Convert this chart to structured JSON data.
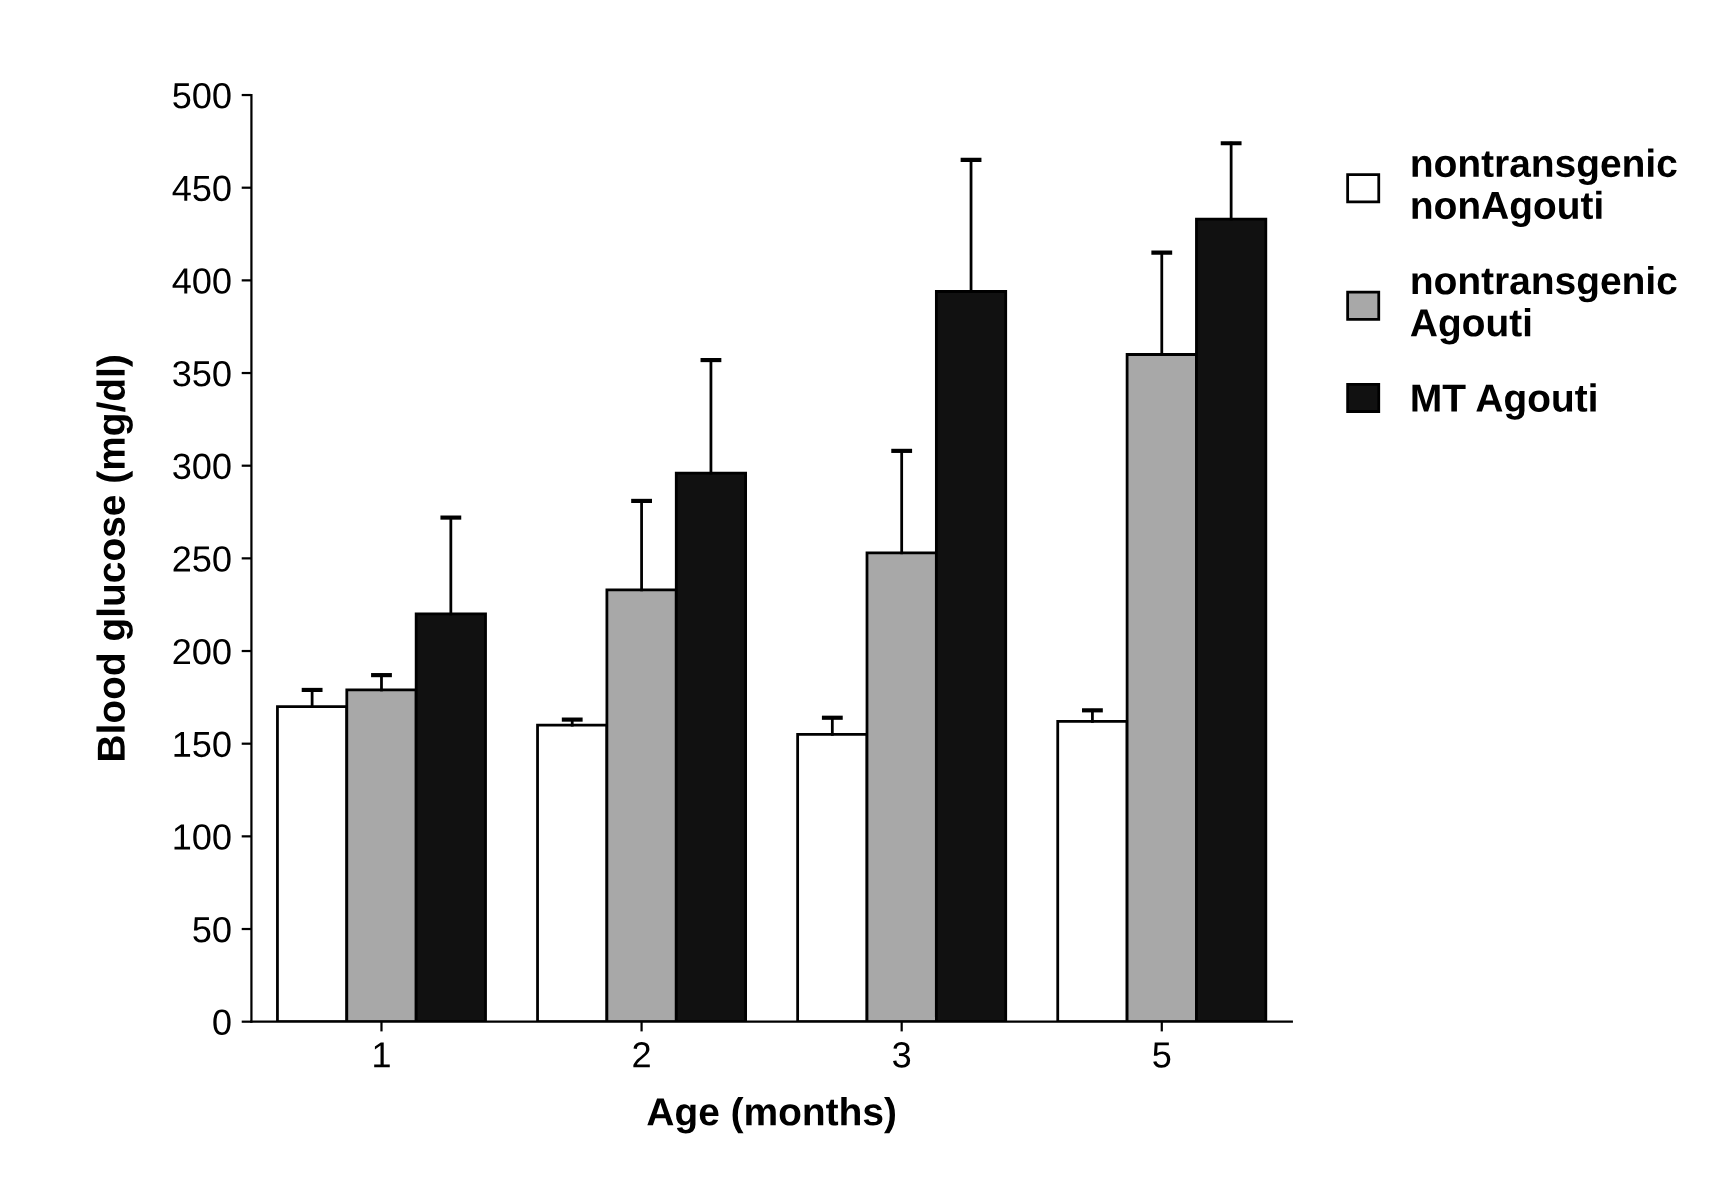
{
  "chart_data": {
    "type": "bar",
    "xlabel": "Age (months)",
    "ylabel": "Blood glucose (mg/dl)",
    "categories": [
      "1",
      "2",
      "3",
      "5"
    ],
    "series": [
      {
        "name": "nontransgenic\nnonAgouti",
        "color": "#ffffff",
        "values": [
          170,
          160,
          155,
          162
        ],
        "errors": [
          [
            170,
            179
          ],
          [
            160,
            163
          ],
          [
            155,
            164
          ],
          [
            162,
            168
          ]
        ]
      },
      {
        "name": "nontransgenic\nAgouti",
        "color": "#a8a8a8",
        "values": [
          179,
          233,
          253,
          360
        ],
        "errors": [
          [
            179,
            187
          ],
          [
            233,
            281
          ],
          [
            253,
            308
          ],
          [
            360,
            415
          ]
        ]
      },
      {
        "name": "MT Agouti",
        "color": "#111111",
        "values": [
          220,
          296,
          394,
          433
        ],
        "errors": [
          [
            220,
            272
          ],
          [
            296,
            357
          ],
          [
            394,
            465
          ],
          [
            433,
            474
          ]
        ]
      }
    ],
    "ylim": [
      0,
      500
    ],
    "yticks": [
      0,
      50,
      100,
      150,
      200,
      250,
      300,
      350,
      400,
      450,
      500
    ],
    "grid": false,
    "legend": "right"
  }
}
